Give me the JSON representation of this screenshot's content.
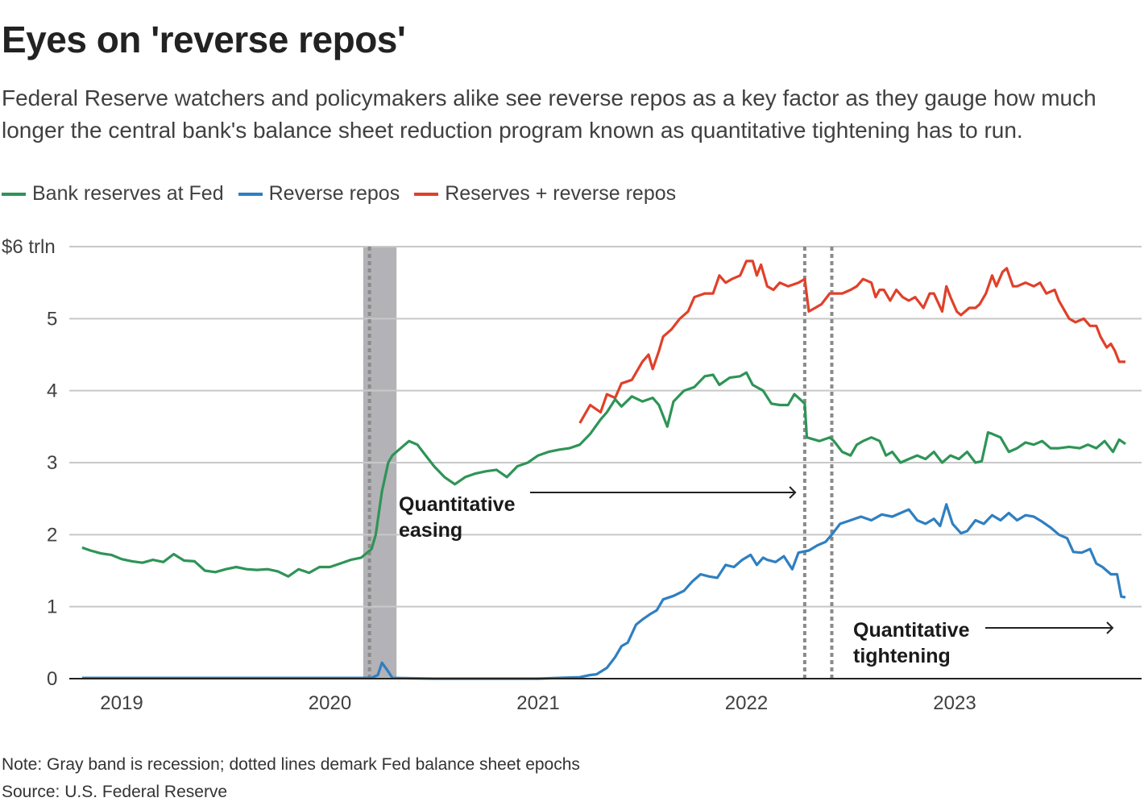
{
  "title": "Eyes on 'reverse repos'",
  "subtitle": "Federal Reserve watchers and policymakers alike see reverse repos as a key factor as they gauge how much longer the central bank's balance sheet reduction program known as quantitative tightening has to run.",
  "note": "Note: Gray band is recession; dotted lines demark Fed balance sheet epochs",
  "source": "Source: U.S. Federal Reserve",
  "chart_data": {
    "type": "line",
    "xlabel": "",
    "ylabel": "",
    "xlim": [
      2018.8,
      2023.85
    ],
    "ylim": [
      0,
      6
    ],
    "grid": true,
    "legend": "top-left",
    "x_ticks": [
      {
        "value": 2019,
        "label": "2019"
      },
      {
        "value": 2020,
        "label": "2020"
      },
      {
        "value": 2021,
        "label": "2021"
      },
      {
        "value": 2022,
        "label": "2022"
      },
      {
        "value": 2023,
        "label": "2023"
      }
    ],
    "y_ticks": [
      {
        "value": 0,
        "label": "0"
      },
      {
        "value": 1,
        "label": "1"
      },
      {
        "value": 2,
        "label": "2"
      },
      {
        "value": 3,
        "label": "3"
      },
      {
        "value": 4,
        "label": "4"
      },
      {
        "value": 5,
        "label": "5"
      },
      {
        "value": 6,
        "label": "$6 trln"
      }
    ],
    "recession_band": [
      2020.16,
      2020.32
    ],
    "epoch_lines": [
      2020.19,
      2022.28,
      2022.41
    ],
    "annotations": [
      {
        "lines": [
          "Quantitative",
          "easing"
        ],
        "x": 2020.33,
        "arrow_to": 2022.25
      },
      {
        "lines": [
          "Quantitative",
          "tightening"
        ],
        "x": 2022.6,
        "arrow_to": 2023.78
      }
    ],
    "series": [
      {
        "name": "Reserves + reverse repos",
        "color": "#e0402a",
        "x": [
          2021.2,
          2021.25,
          2021.3,
          2021.33,
          2021.37,
          2021.4,
          2021.45,
          2021.5,
          2021.53,
          2021.55,
          2021.58,
          2021.6,
          2021.64,
          2021.68,
          2021.72,
          2021.75,
          2021.8,
          2021.84,
          2021.87,
          2021.9,
          2021.93,
          2021.97,
          2022.0,
          2022.03,
          2022.05,
          2022.07,
          2022.1,
          2022.13,
          2022.16,
          2022.2,
          2022.25,
          2022.28,
          2022.3,
          2022.33,
          2022.36,
          2022.4,
          2022.42,
          2022.46,
          2022.5,
          2022.53,
          2022.56,
          2022.6,
          2022.62,
          2022.64,
          2022.66,
          2022.69,
          2022.72,
          2022.75,
          2022.78,
          2022.81,
          2022.85,
          2022.88,
          2022.9,
          2022.94,
          2022.96,
          2022.98,
          2023.01,
          2023.03,
          2023.07,
          2023.1,
          2023.12,
          2023.15,
          2023.18,
          2023.2,
          2023.23,
          2023.25,
          2023.28,
          2023.3,
          2023.34,
          2023.38,
          2023.41,
          2023.44,
          2023.48,
          2023.5,
          2023.53,
          2023.55,
          2023.58,
          2023.62,
          2023.65,
          2023.68,
          2023.7,
          2023.73,
          2023.75,
          2023.77,
          2023.79,
          2023.8,
          2023.82
        ],
        "y": [
          3.55,
          3.8,
          3.7,
          3.95,
          3.9,
          4.1,
          4.15,
          4.4,
          4.5,
          4.3,
          4.55,
          4.75,
          4.85,
          5.0,
          5.1,
          5.3,
          5.35,
          5.35,
          5.6,
          5.5,
          5.55,
          5.6,
          5.8,
          5.8,
          5.6,
          5.75,
          5.45,
          5.4,
          5.5,
          5.45,
          5.5,
          5.55,
          5.1,
          5.15,
          5.2,
          5.35,
          5.35,
          5.35,
          5.4,
          5.45,
          5.55,
          5.5,
          5.3,
          5.4,
          5.4,
          5.25,
          5.4,
          5.3,
          5.25,
          5.3,
          5.15,
          5.35,
          5.35,
          5.1,
          5.45,
          5.3,
          5.1,
          5.05,
          5.15,
          5.15,
          5.2,
          5.35,
          5.6,
          5.45,
          5.65,
          5.7,
          5.45,
          5.45,
          5.5,
          5.45,
          5.5,
          5.35,
          5.4,
          5.25,
          5.1,
          5.0,
          4.95,
          5.0,
          4.9,
          4.9,
          4.75,
          4.6,
          4.65,
          4.55,
          4.4,
          4.4,
          4.4
        ]
      },
      {
        "name": "Bank reserves at Fed",
        "color": "#2e9457",
        "x": [
          2018.81,
          2018.85,
          2018.9,
          2018.95,
          2019.0,
          2019.05,
          2019.1,
          2019.15,
          2019.2,
          2019.25,
          2019.3,
          2019.35,
          2019.4,
          2019.45,
          2019.5,
          2019.55,
          2019.6,
          2019.65,
          2019.7,
          2019.75,
          2019.8,
          2019.85,
          2019.9,
          2019.95,
          2020.0,
          2020.05,
          2020.1,
          2020.15,
          2020.2,
          2020.22,
          2020.25,
          2020.28,
          2020.3,
          2020.34,
          2020.38,
          2020.42,
          2020.46,
          2020.5,
          2020.55,
          2020.6,
          2020.65,
          2020.7,
          2020.75,
          2020.8,
          2020.85,
          2020.9,
          2020.95,
          2021.0,
          2021.05,
          2021.1,
          2021.15,
          2021.2,
          2021.25,
          2021.3,
          2021.33,
          2021.37,
          2021.4,
          2021.45,
          2021.5,
          2021.55,
          2021.58,
          2021.62,
          2021.65,
          2021.7,
          2021.75,
          2021.8,
          2021.84,
          2021.87,
          2021.92,
          2021.97,
          2022.0,
          2022.03,
          2022.08,
          2022.12,
          2022.16,
          2022.2,
          2022.23,
          2022.25,
          2022.28,
          2022.29,
          2022.35,
          2022.4,
          2022.42,
          2022.46,
          2022.5,
          2022.53,
          2022.56,
          2022.6,
          2022.64,
          2022.67,
          2022.7,
          2022.74,
          2022.78,
          2022.82,
          2022.86,
          2022.9,
          2022.94,
          2022.98,
          2023.02,
          2023.06,
          2023.1,
          2023.13,
          2023.16,
          2023.18,
          2023.22,
          2023.26,
          2023.3,
          2023.34,
          2023.38,
          2023.42,
          2023.46,
          2023.5,
          2023.55,
          2023.6,
          2023.64,
          2023.68,
          2023.72,
          2023.76,
          2023.79,
          2023.82
        ],
        "y": [
          1.82,
          1.78,
          1.74,
          1.72,
          1.66,
          1.63,
          1.61,
          1.65,
          1.62,
          1.73,
          1.64,
          1.63,
          1.5,
          1.48,
          1.52,
          1.55,
          1.52,
          1.51,
          1.52,
          1.49,
          1.42,
          1.52,
          1.47,
          1.55,
          1.55,
          1.6,
          1.65,
          1.68,
          1.8,
          2.0,
          2.6,
          3.0,
          3.1,
          3.2,
          3.3,
          3.25,
          3.1,
          2.95,
          2.8,
          2.7,
          2.8,
          2.85,
          2.88,
          2.9,
          2.8,
          2.95,
          3.0,
          3.1,
          3.15,
          3.18,
          3.2,
          3.25,
          3.4,
          3.6,
          3.7,
          3.88,
          3.78,
          3.92,
          3.85,
          3.9,
          3.8,
          3.5,
          3.85,
          4.0,
          4.05,
          4.2,
          4.22,
          4.08,
          4.18,
          4.2,
          4.25,
          4.08,
          4.0,
          3.82,
          3.8,
          3.8,
          3.95,
          3.9,
          3.82,
          3.35,
          3.3,
          3.35,
          3.3,
          3.15,
          3.1,
          3.25,
          3.3,
          3.35,
          3.3,
          3.1,
          3.15,
          3.0,
          3.05,
          3.1,
          3.05,
          3.15,
          3.0,
          3.1,
          3.05,
          3.15,
          3.0,
          3.02,
          3.42,
          3.4,
          3.35,
          3.15,
          3.2,
          3.28,
          3.25,
          3.3,
          3.2,
          3.2,
          3.22,
          3.2,
          3.25,
          3.2,
          3.3,
          3.15,
          3.32,
          3.26
        ]
      },
      {
        "name": "Reverse repos",
        "color": "#2f7fc1",
        "x": [
          2018.81,
          2019.0,
          2019.5,
          2020.0,
          2020.2,
          2020.23,
          2020.25,
          2020.28,
          2020.3,
          2020.5,
          2021.0,
          2021.2,
          2021.25,
          2021.28,
          2021.33,
          2021.37,
          2021.4,
          2021.43,
          2021.47,
          2021.5,
          2021.54,
          2021.57,
          2021.6,
          2021.65,
          2021.7,
          2021.74,
          2021.78,
          2021.82,
          2021.86,
          2021.9,
          2021.94,
          2021.98,
          2022.02,
          2022.05,
          2022.08,
          2022.1,
          2022.14,
          2022.18,
          2022.22,
          2022.25,
          2022.3,
          2022.34,
          2022.38,
          2022.41,
          2022.45,
          2022.5,
          2022.55,
          2022.6,
          2022.65,
          2022.7,
          2022.74,
          2022.78,
          2022.82,
          2022.86,
          2022.9,
          2022.93,
          2022.96,
          2022.99,
          2023.03,
          2023.06,
          2023.1,
          2023.14,
          2023.18,
          2023.22,
          2023.26,
          2023.3,
          2023.34,
          2023.38,
          2023.42,
          2023.46,
          2023.5,
          2023.54,
          2023.57,
          2023.61,
          2023.65,
          2023.68,
          2023.71,
          2023.75,
          2023.78,
          2023.8,
          2023.82
        ],
        "y": [
          0.01,
          0.01,
          0.01,
          0.01,
          0.01,
          0.05,
          0.22,
          0.1,
          0.01,
          0.0,
          0.0,
          0.02,
          0.05,
          0.06,
          0.15,
          0.3,
          0.45,
          0.5,
          0.75,
          0.82,
          0.9,
          0.95,
          1.1,
          1.15,
          1.22,
          1.35,
          1.45,
          1.42,
          1.4,
          1.58,
          1.55,
          1.65,
          1.72,
          1.58,
          1.68,
          1.65,
          1.62,
          1.7,
          1.52,
          1.75,
          1.78,
          1.85,
          1.9,
          2.0,
          2.15,
          2.2,
          2.25,
          2.2,
          2.28,
          2.25,
          2.3,
          2.35,
          2.2,
          2.15,
          2.22,
          2.12,
          2.42,
          2.15,
          2.02,
          2.05,
          2.2,
          2.15,
          2.27,
          2.2,
          2.3,
          2.2,
          2.27,
          2.25,
          2.18,
          2.1,
          2.0,
          1.95,
          1.76,
          1.75,
          1.8,
          1.6,
          1.55,
          1.45,
          1.45,
          1.14,
          1.13
        ]
      }
    ]
  }
}
